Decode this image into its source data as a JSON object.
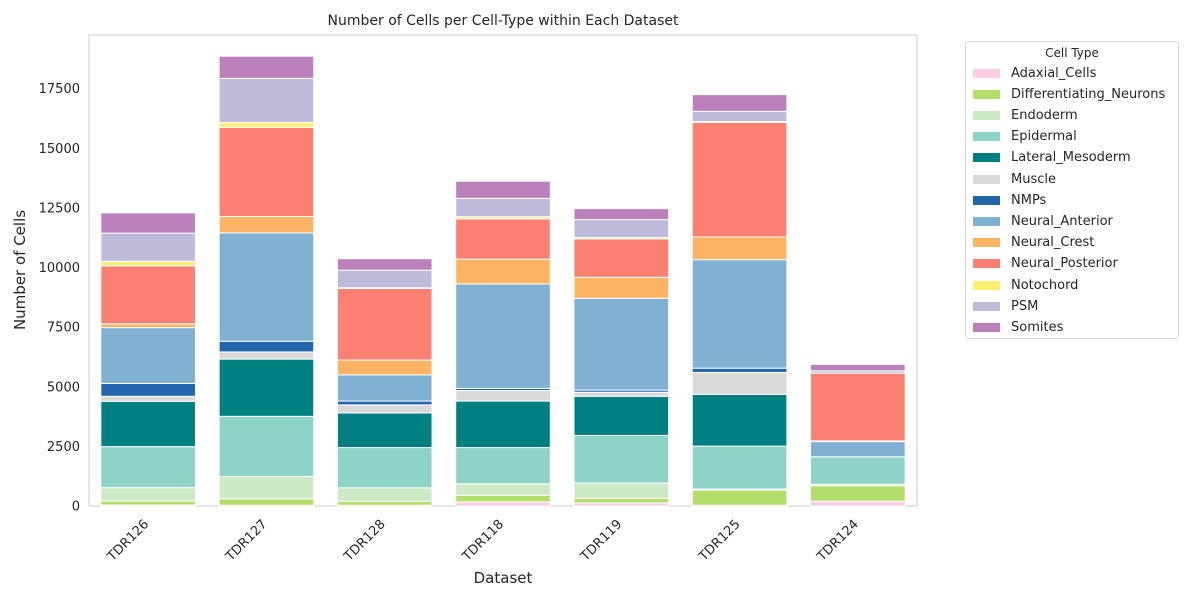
{
  "chart_data": {
    "type": "bar",
    "stacked": true,
    "title": "Number of Cells per Cell-Type within Each Dataset",
    "xlabel": "Dataset",
    "ylabel": "Number of Cells",
    "categories": [
      "TDR126",
      "TDR127",
      "TDR128",
      "TDR118",
      "TDR119",
      "TDR125",
      "TDR124"
    ],
    "ylim": [
      0,
      19750
    ],
    "yticks": [
      0,
      2500,
      5000,
      7500,
      10000,
      12500,
      15000,
      17500
    ],
    "grid": false,
    "legend": {
      "title": "Cell Type",
      "placement": "outside-right"
    },
    "series": [
      {
        "name": "Adaxial_Cells",
        "color": "#fccde5",
        "values": [
          40,
          30,
          30,
          170,
          130,
          30,
          200
        ]
      },
      {
        "name": "Differentiating_Neurons",
        "color": "#b3de69",
        "values": [
          170,
          270,
          170,
          280,
          190,
          640,
          650
        ]
      },
      {
        "name": "Endoderm",
        "color": "#ccebc5",
        "values": [
          560,
          940,
          560,
          480,
          640,
          40,
          60
        ]
      },
      {
        "name": "Epidermal",
        "color": "#8dd3c7",
        "values": [
          1720,
          2520,
          1690,
          1520,
          2000,
          1800,
          1150
        ]
      },
      {
        "name": "Lateral_Mesoderm",
        "color": "#008080",
        "values": [
          1900,
          2400,
          1450,
          1950,
          1640,
          2170,
          0
        ]
      },
      {
        "name": "Muscle",
        "color": "#d9d9d9",
        "values": [
          210,
          300,
          340,
          440,
          170,
          920,
          0
        ]
      },
      {
        "name": "NMPs",
        "color": "#2166ac",
        "values": [
          540,
          450,
          160,
          90,
          90,
          180,
          0
        ]
      },
      {
        "name": "Neural_Anterior",
        "color": "#80b1d3",
        "values": [
          2340,
          4540,
          1100,
          4380,
          3850,
          4550,
          640
        ]
      },
      {
        "name": "Neural_Crest",
        "color": "#fdb462",
        "values": [
          160,
          690,
          620,
          1040,
          880,
          950,
          30
        ]
      },
      {
        "name": "Neural_Posterior",
        "color": "#fb8072",
        "values": [
          2430,
          3740,
          3000,
          1690,
          1610,
          4810,
          2840
        ]
      },
      {
        "name": "Notochord",
        "color": "#ffed6f",
        "values": [
          190,
          200,
          30,
          90,
          60,
          30,
          0
        ]
      },
      {
        "name": "PSM",
        "color": "#bebada",
        "values": [
          1180,
          1850,
          740,
          770,
          750,
          430,
          100
        ]
      },
      {
        "name": "Somites",
        "color": "#bc80bd",
        "values": [
          850,
          930,
          480,
          720,
          460,
          700,
          270
        ]
      }
    ]
  }
}
